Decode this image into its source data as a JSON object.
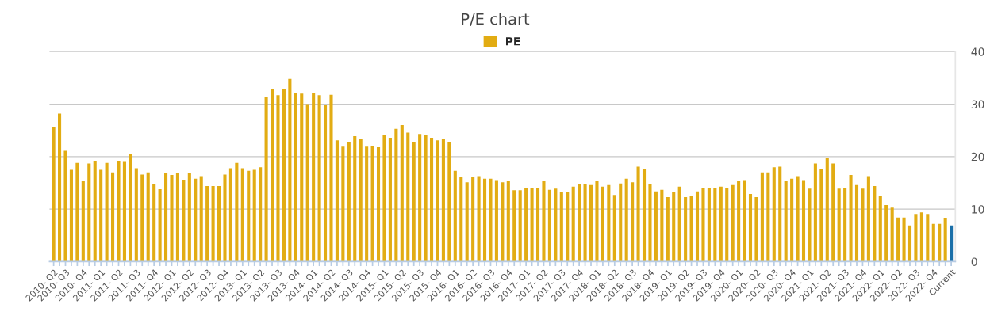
{
  "chart_data": {
    "type": "bar",
    "title": "P/E chart",
    "categories": [
      "2010- Q2",
      null,
      "2010- Q3",
      null,
      null,
      "2010- Q4",
      null,
      null,
      "2011- Q1",
      null,
      null,
      "2011- Q2",
      null,
      null,
      "2011- Q3",
      null,
      null,
      "2011- Q4",
      null,
      null,
      "2012- Q1",
      null,
      null,
      "2012- Q2",
      null,
      null,
      "2012- Q3",
      null,
      null,
      "2012- Q4",
      null,
      null,
      "2013- Q1",
      null,
      null,
      "2013- Q2",
      null,
      null,
      "2013- Q3",
      null,
      null,
      "2013- Q4",
      null,
      null,
      "2014- Q1",
      null,
      null,
      "2014- Q2",
      null,
      null,
      "2014- Q3",
      null,
      null,
      "2014- Q4",
      null,
      null,
      "2015- Q1",
      null,
      null,
      "2015- Q2",
      null,
      null,
      "2015- Q3",
      null,
      null,
      "2015- Q4",
      null,
      null,
      "2016- Q1",
      null,
      null,
      "2016- Q2",
      null,
      null,
      "2016- Q3",
      null,
      null,
      "2016- Q4",
      null,
      null,
      "2017- Q1",
      null,
      null,
      "2017- Q2",
      null,
      null,
      "2017- Q3",
      null,
      null,
      "2017- Q4",
      null,
      null,
      "2018- Q1",
      null,
      null,
      "2018- Q2",
      null,
      null,
      "2018- Q3",
      null,
      null,
      "2018- Q4",
      null,
      null,
      "2019- Q1",
      null,
      null,
      "2019- Q2",
      null,
      null,
      "2019- Q3",
      null,
      null,
      "2019- Q4",
      null,
      null,
      "2020- Q1",
      null,
      null,
      "2020- Q2",
      null,
      null,
      "2020- Q3",
      null,
      null,
      "2020- Q4",
      null,
      null,
      "2021- Q1",
      null,
      null,
      "2021- Q2",
      null,
      null,
      "2021- Q3",
      null,
      null,
      "2021- Q4",
      null,
      null,
      "2022- Q1",
      null,
      null,
      "2022- Q2",
      null,
      null,
      "2022- Q3",
      null,
      null,
      "2022- Q4",
      null,
      null,
      "Current"
    ],
    "series": [
      {
        "name": "PE",
        "color": "#e2ac13",
        "values": [
          25.7,
          28.2,
          21.1,
          17.5,
          18.8,
          15.3,
          18.7,
          19.1,
          17.5,
          18.8,
          17.0,
          19.1,
          19.0,
          20.6,
          17.8,
          16.6,
          17.0,
          14.8,
          13.8,
          16.8,
          16.5,
          16.8,
          15.6,
          16.8,
          15.8,
          16.3,
          14.4,
          14.4,
          14.4,
          16.6,
          17.8,
          18.8,
          17.8,
          17.3,
          17.5,
          18.0,
          31.3,
          32.9,
          31.7,
          32.9,
          34.8,
          32.2,
          32.0,
          30.0,
          32.2,
          31.7,
          29.8,
          31.8,
          23.1,
          21.9,
          22.8,
          23.9,
          23.4,
          21.9,
          22.1,
          21.8,
          24.1,
          23.6,
          25.3,
          26.0,
          24.6,
          22.8,
          24.3,
          24.1,
          23.6,
          23.1,
          23.4,
          22.8,
          17.3,
          16.1,
          15.1,
          16.1,
          16.3,
          15.8,
          15.8,
          15.4,
          15.1,
          15.3,
          13.6,
          13.6,
          14.1,
          14.1,
          14.1,
          15.3,
          13.7,
          13.9,
          13.2,
          13.2,
          14.3,
          14.8,
          14.8,
          14.6,
          15.3,
          14.3,
          14.6,
          12.7,
          14.9,
          15.8,
          15.1,
          18.1,
          17.6,
          14.8,
          13.4,
          13.7,
          12.3,
          13.2,
          14.3,
          12.3,
          12.5,
          13.4,
          14.1,
          14.1,
          14.1,
          14.3,
          14.1,
          14.6,
          15.3,
          15.4,
          12.9,
          12.3,
          17.0,
          17.0,
          18.0,
          18.1,
          15.3,
          15.8,
          16.3,
          15.4,
          13.9,
          18.7,
          17.7,
          19.7,
          18.7,
          13.9,
          14.0,
          16.5,
          14.6,
          13.9,
          16.3,
          14.4,
          12.5,
          10.8,
          10.3,
          8.4,
          8.4,
          6.9,
          9.1,
          9.4,
          9.1,
          7.2,
          7.2,
          8.2,
          6.9
        ],
        "colors": [
          "#e2ac13",
          "#e2ac13",
          "#e2ac13",
          "#e2ac13",
          "#e2ac13",
          "#e2ac13",
          "#e2ac13",
          "#e2ac13",
          "#e2ac13",
          "#e2ac13",
          "#e2ac13",
          "#e2ac13",
          "#e2ac13",
          "#e2ac13",
          "#e2ac13",
          "#e2ac13",
          "#e2ac13",
          "#e2ac13",
          "#e2ac13",
          "#e2ac13",
          "#e2ac13",
          "#e2ac13",
          "#e2ac13",
          "#e2ac13",
          "#e2ac13",
          "#e2ac13",
          "#e2ac13",
          "#e2ac13",
          "#e2ac13",
          "#e2ac13",
          "#e2ac13",
          "#e2ac13",
          "#e2ac13",
          "#e2ac13",
          "#e2ac13",
          "#e2ac13",
          "#e2ac13",
          "#e2ac13",
          "#e2ac13",
          "#e2ac13",
          "#e2ac13",
          "#e2ac13",
          "#e2ac13",
          "#e2ac13",
          "#e2ac13",
          "#e2ac13",
          "#e2ac13",
          "#e2ac13",
          "#e2ac13",
          "#e2ac13",
          "#e2ac13",
          "#e2ac13",
          "#e2ac13",
          "#e2ac13",
          "#e2ac13",
          "#e2ac13",
          "#e2ac13",
          "#e2ac13",
          "#e2ac13",
          "#e2ac13",
          "#e2ac13",
          "#e2ac13",
          "#e2ac13",
          "#e2ac13",
          "#e2ac13",
          "#e2ac13",
          "#e2ac13",
          "#e2ac13",
          "#e2ac13",
          "#e2ac13",
          "#e2ac13",
          "#e2ac13",
          "#e2ac13",
          "#e2ac13",
          "#e2ac13",
          "#e2ac13",
          "#e2ac13",
          "#e2ac13",
          "#e2ac13",
          "#e2ac13",
          "#e2ac13",
          "#e2ac13",
          "#e2ac13",
          "#e2ac13",
          "#e2ac13",
          "#e2ac13",
          "#e2ac13",
          "#e2ac13",
          "#e2ac13",
          "#e2ac13",
          "#e2ac13",
          "#e2ac13",
          "#e2ac13",
          "#e2ac13",
          "#e2ac13",
          "#e2ac13",
          "#e2ac13",
          "#e2ac13",
          "#e2ac13",
          "#e2ac13",
          "#e2ac13",
          "#e2ac13",
          "#e2ac13",
          "#e2ac13",
          "#e2ac13",
          "#e2ac13",
          "#e2ac13",
          "#e2ac13",
          "#e2ac13",
          "#e2ac13",
          "#e2ac13",
          "#e2ac13",
          "#e2ac13",
          "#e2ac13",
          "#e2ac13",
          "#e2ac13",
          "#e2ac13",
          "#e2ac13",
          "#e2ac13",
          "#e2ac13",
          "#e2ac13",
          "#e2ac13",
          "#e2ac13",
          "#e2ac13",
          "#e2ac13",
          "#e2ac13",
          "#e2ac13",
          "#e2ac13",
          "#e2ac13",
          "#e2ac13",
          "#e2ac13",
          "#e2ac13",
          "#e2ac13",
          "#e2ac13",
          "#e2ac13",
          "#e2ac13",
          "#e2ac13",
          "#e2ac13",
          "#e2ac13",
          "#e2ac13",
          "#e2ac13",
          "#e2ac13",
          "#e2ac13",
          "#e2ac13",
          "#e2ac13",
          "#e2ac13",
          "#e2ac13",
          "#e2ac13",
          "#e2ac13",
          "#e2ac13",
          "#e2ac13",
          "#e2ac13",
          "#1a6fa8"
        ]
      }
    ],
    "ylim": [
      0,
      40
    ],
    "yticks": [
      0,
      10,
      20,
      30,
      40
    ],
    "grid": "y",
    "legend": "top"
  }
}
